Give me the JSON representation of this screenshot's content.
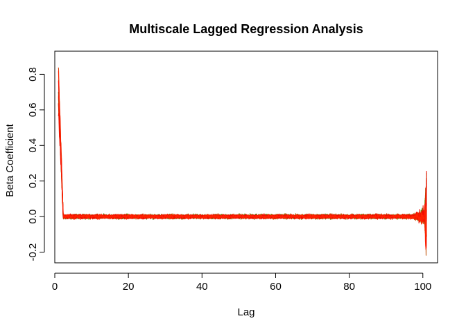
{
  "chart_data": {
    "type": "line",
    "title": "Multiscale Lagged Regression Analysis",
    "xlabel": "Lag",
    "ylabel": "Beta Coefficient",
    "xlim": [
      0,
      104
    ],
    "ylim": [
      -0.26,
      0.93
    ],
    "x_ticks": [
      0,
      20,
      40,
      60,
      80,
      100
    ],
    "x_tick_labels": [
      "0",
      "20",
      "40",
      "60",
      "80",
      "100"
    ],
    "y_ticks": [
      -0.2,
      0.0,
      0.2,
      0.4,
      0.6,
      0.8
    ],
    "y_tick_labels": [
      "-0.2",
      "0.0",
      "0.2",
      "0.4",
      "0.6",
      "0.8"
    ],
    "grid": false,
    "legend": "none",
    "series_count": 12,
    "lag_range": [
      1,
      101
    ],
    "series_colors": [
      "#2e8b00",
      "#4f8f00",
      "#6b8e00",
      "#8a7a00",
      "#a86400",
      "#c04e00",
      "#d43a00",
      "#e02800",
      "#e81c00",
      "#ee1000",
      "#f20800",
      "#ff2200"
    ],
    "profile": {
      "start_value": 0.88,
      "decay_to_lag": 2.3,
      "baseline": 0.0,
      "noise_amplitude": 0.018,
      "end_spike_range": [
        -0.22,
        0.12
      ]
    }
  }
}
